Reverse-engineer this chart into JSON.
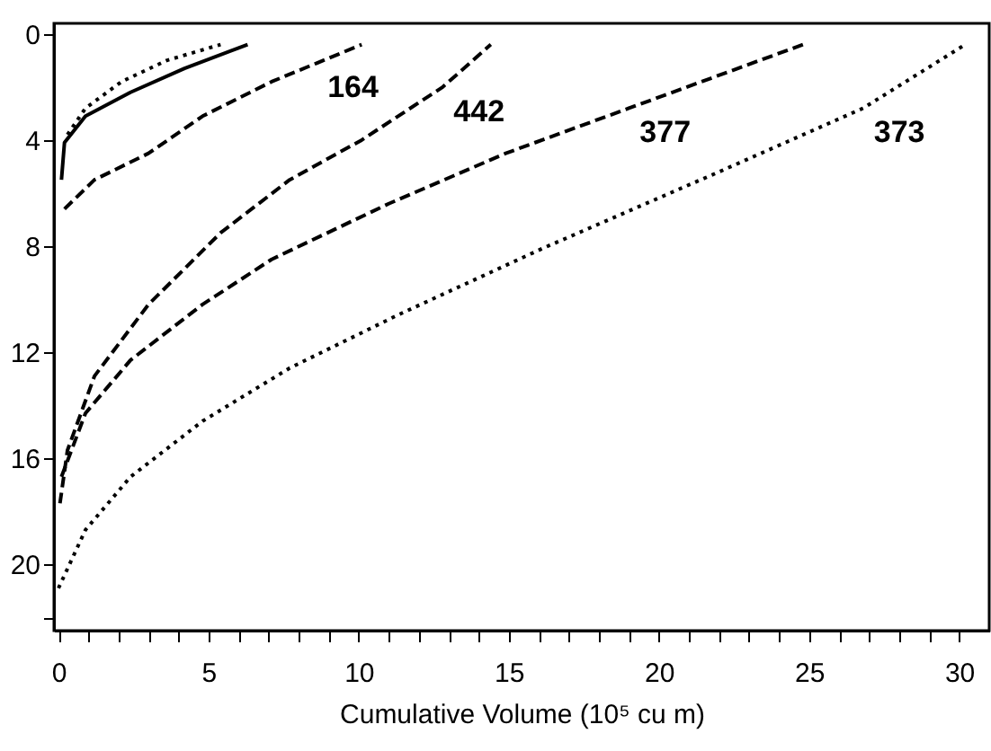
{
  "chart_data": {
    "type": "line",
    "xlabel": "Cumulative Volume (10⁵ cu m)",
    "xlim": [
      -0.15,
      31
    ],
    "ylim": [
      22.5,
      -0.4
    ],
    "xticks": [
      0,
      {
        "value": 1,
        "label": null
      },
      {
        "value": 2,
        "label": null
      },
      {
        "value": 3,
        "label": null
      },
      {
        "value": 4,
        "label": null
      },
      5,
      {
        "value": 6,
        "label": null
      },
      {
        "value": 7,
        "label": null
      },
      {
        "value": 8,
        "label": null
      },
      {
        "value": 9,
        "label": null
      },
      10,
      {
        "value": 11,
        "label": null
      },
      {
        "value": 12,
        "label": null
      },
      {
        "value": 13,
        "label": null
      },
      {
        "value": 14,
        "label": null
      },
      15,
      {
        "value": 16,
        "label": null
      },
      {
        "value": 17,
        "label": null
      },
      {
        "value": 18,
        "label": null
      },
      {
        "value": 19,
        "label": null
      },
      20,
      {
        "value": 21,
        "label": null
      },
      {
        "value": 22,
        "label": null
      },
      {
        "value": 23,
        "label": null
      },
      {
        "value": 24,
        "label": null
      },
      25,
      {
        "value": 26,
        "label": null
      },
      {
        "value": 27,
        "label": null
      },
      {
        "value": 28,
        "label": null
      },
      {
        "value": 29,
        "label": null
      },
      30
    ],
    "yticks": [
      0,
      4,
      8,
      12,
      16,
      20,
      {
        "value": 22,
        "label": null
      }
    ],
    "grid": false,
    "marker": "none",
    "series": [
      {
        "color": "#000000",
        "line_style": "solid",
        "x": [
          0.1,
          0.2,
          0.9,
          2.4,
          4.2,
          6.3
        ],
        "values": [
          5.5,
          4.1,
          3.1,
          2.2,
          1.3,
          0.4
        ]
      },
      {
        "color": "#000000",
        "line_style": "dotted",
        "x": [
          0.3,
          0.9,
          2.1,
          3.6,
          5.4
        ],
        "values": [
          3.8,
          2.8,
          1.8,
          1.0,
          0.4
        ]
      },
      {
        "name": "164",
        "color": "#000000",
        "line_style": "dashed",
        "x": [
          0.2,
          1.2,
          3,
          4.8,
          7.1,
          8.6,
          10.1
        ],
        "values": [
          6.6,
          5.5,
          4.5,
          3.1,
          1.8,
          1.1,
          0.4
        ]
      },
      {
        "name": "442",
        "color": "#000000",
        "line_style": "dashed",
        "x": [
          0.05,
          0.3,
          1.2,
          3,
          5.4,
          7.7,
          10.1,
          12.8,
          14.4
        ],
        "values": [
          17.7,
          15.7,
          12.9,
          10.2,
          7.5,
          5.5,
          4.0,
          2.0,
          0.4
        ]
      },
      {
        "name": "377",
        "color": "#000000",
        "line_style": "dashed",
        "x": [
          0.1,
          0.9,
          2.4,
          4.8,
          7.1,
          11,
          14.9,
          19,
          24.8
        ],
        "values": [
          16.7,
          14.3,
          12.3,
          10.2,
          8.5,
          6.4,
          4.5,
          2.8,
          0.4
        ]
      },
      {
        "name": "373",
        "color": "#000000",
        "line_style": "dotted",
        "x": [
          0,
          0.9,
          2.4,
          4.8,
          7.7,
          11.3,
          16.1,
          22,
          26.8,
          30.2
        ],
        "values": [
          20.9,
          18.7,
          16.7,
          14.6,
          12.6,
          10.6,
          8.1,
          5.2,
          2.8,
          0.4
        ]
      }
    ]
  }
}
